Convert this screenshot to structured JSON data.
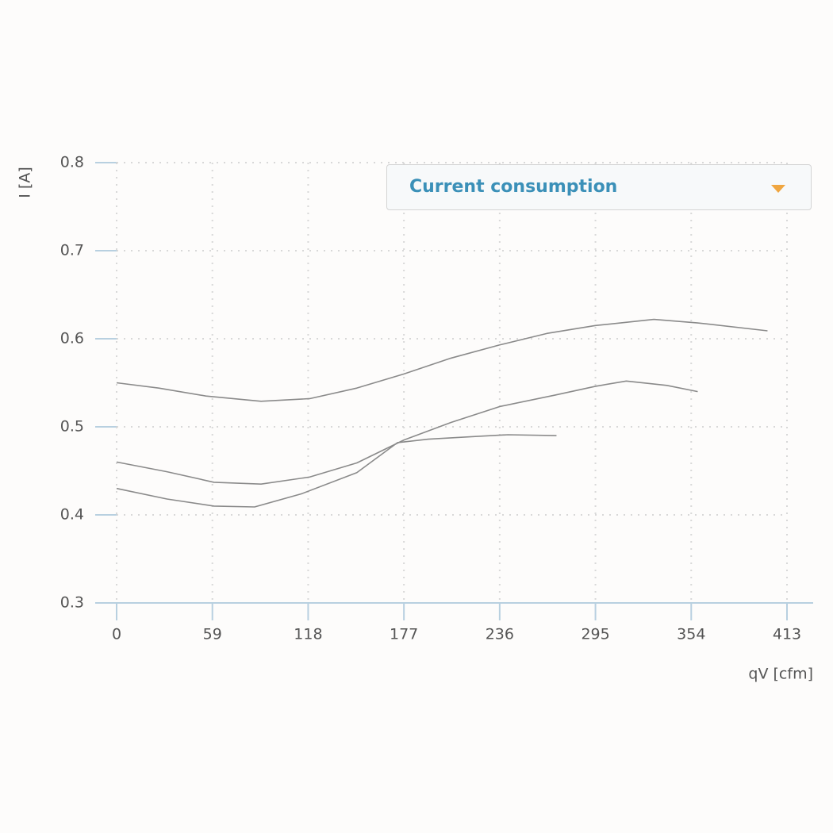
{
  "chart_data": {
    "type": "line",
    "ylabel": "I [A]",
    "xlabel": "qV [cfm]",
    "xlim": [
      0,
      413
    ],
    "xticks": [
      0,
      59,
      118,
      177,
      236,
      295,
      354,
      413
    ],
    "ylim": [
      0.3,
      0.8
    ],
    "yticks": [
      0.3,
      0.4,
      0.5,
      0.6,
      0.7,
      0.8
    ],
    "grid": true,
    "series": [
      {
        "color": "#8a8a8a",
        "x": [
          0,
          26,
          55,
          89,
          119,
          148,
          177,
          206,
          236,
          265,
          295,
          331,
          358,
          401
        ],
        "values": [
          0.55,
          0.544,
          0.535,
          0.529,
          0.532,
          0.544,
          0.56,
          0.578,
          0.593,
          0.606,
          0.615,
          0.622,
          0.618,
          0.609
        ]
      },
      {
        "color": "#8a8a8a",
        "x": [
          0,
          31,
          60,
          89,
          119,
          148,
          177,
          206,
          236,
          270,
          295,
          314,
          339,
          358
        ],
        "values": [
          0.46,
          0.449,
          0.437,
          0.435,
          0.443,
          0.459,
          0.485,
          0.505,
          0.523,
          0.536,
          0.546,
          0.552,
          0.547,
          0.54
        ]
      },
      {
        "color": "#8a8a8a",
        "x": [
          0,
          31,
          60,
          85,
          114,
          148,
          173,
          192,
          221,
          241,
          271
        ],
        "values": [
          0.43,
          0.418,
          0.41,
          0.409,
          0.424,
          0.448,
          0.482,
          0.486,
          0.489,
          0.491,
          0.49
        ]
      }
    ]
  },
  "dropdown": {
    "label": "Current consumption"
  }
}
